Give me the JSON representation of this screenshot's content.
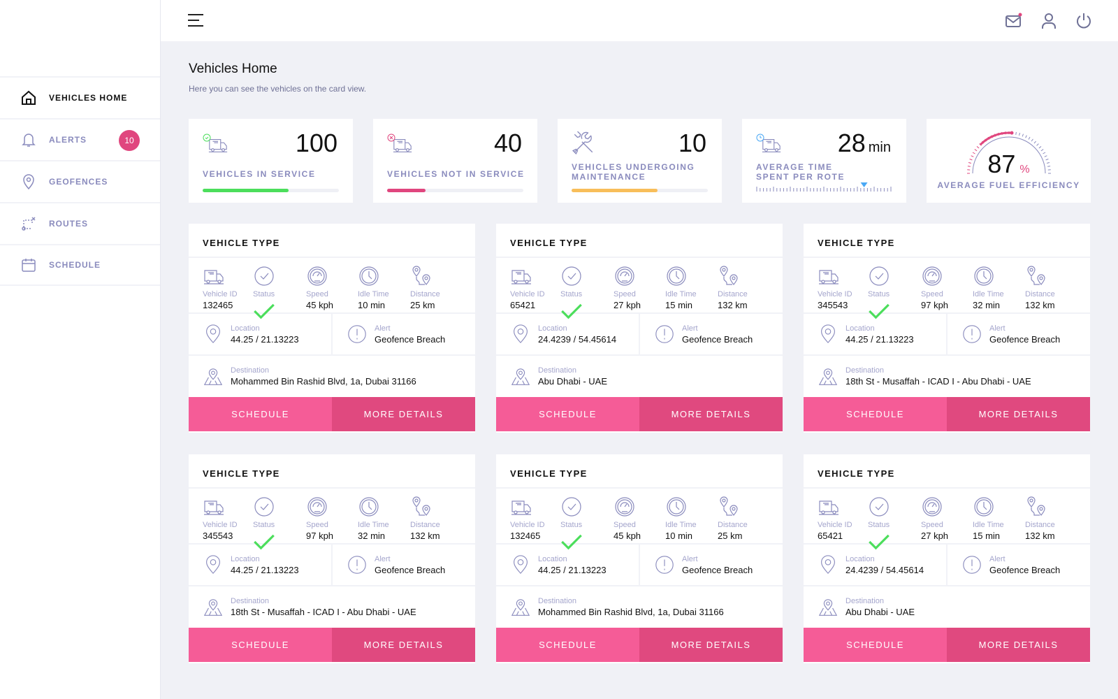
{
  "colors": {
    "accent": "#e0467e",
    "green": "#4cde5c",
    "orange": "#f8be5a",
    "blue": "#4aa8f5",
    "muted": "#8a8bbd"
  },
  "sidebar": {
    "items": [
      {
        "label": "VEHICLES HOME",
        "icon": "home-icon"
      },
      {
        "label": "ALERTS",
        "icon": "bell-icon",
        "badge": "10"
      },
      {
        "label": "GEOFENCES",
        "icon": "pin-icon"
      },
      {
        "label": "ROUTES",
        "icon": "routes-icon"
      },
      {
        "label": "SCHEDULE",
        "icon": "calendar-icon"
      }
    ]
  },
  "header": {
    "icons": [
      "menu-icon",
      "mail-icon",
      "user-icon",
      "power-icon"
    ]
  },
  "page": {
    "title": "Vehicles Home",
    "subtitle": "Here you can see the vehicles on the card view."
  },
  "stats": [
    {
      "value": "100",
      "label": "VEHICLES IN SERVICE",
      "progress": 0.63
    },
    {
      "value": "40",
      "label": "VEHICLES NOT IN SERVICE",
      "progress": 0.28
    },
    {
      "value": "10",
      "label": "VEHICLES UNDERGOING MAINTENANCE",
      "progress": 0.63
    },
    {
      "value": "28",
      "unit": "min",
      "label": "AVERAGE TIME SPENT PER ROTE",
      "slider": 0.8
    },
    {
      "value": "87",
      "unit": "%",
      "label": "AVERAGE FUEL EFFICIENCY",
      "gauge": 0.87
    }
  ],
  "card_labels": {
    "title": "VEHICLE TYPE",
    "vehicle_id": "Vehicle ID",
    "status": "Status",
    "speed": "Speed",
    "idle": "Idle Time",
    "distance": "Distance",
    "location": "Location",
    "alert": "Alert",
    "destination": "Destination",
    "schedule": "SCHEDULE",
    "more": "MORE DETAILS"
  },
  "vehicles": [
    {
      "id": "132465",
      "speed": "45 kph",
      "idle": "10 min",
      "distance": "25 km",
      "location": "44.25 / 21.13223",
      "alert": "Geofence Breach",
      "destination": "Mohammed Bin Rashid Blvd, 1a, Dubai 31166"
    },
    {
      "id": "65421",
      "speed": "27 kph",
      "idle": "15 min",
      "distance": "132 km",
      "location": "24.4239 / 54.45614",
      "alert": "Geofence Breach",
      "destination": "Abu Dhabi - UAE"
    },
    {
      "id": "345543",
      "speed": "97 kph",
      "idle": "32 min",
      "distance": "132 km",
      "location": "44.25 / 21.13223",
      "alert": "Geofence Breach",
      "destination": "18th St - Musaffah - ICAD I - Abu Dhabi - UAE"
    },
    {
      "id": "345543",
      "speed": "97 kph",
      "idle": "32 min",
      "distance": "132 km",
      "location": "44.25 / 21.13223",
      "alert": "Geofence Breach",
      "destination": "18th St - Musaffah - ICAD I - Abu Dhabi - UAE"
    },
    {
      "id": "132465",
      "speed": "45 kph",
      "idle": "10 min",
      "distance": "25 km",
      "location": "44.25 / 21.13223",
      "alert": "Geofence Breach",
      "destination": "Mohammed Bin Rashid Blvd, 1a, Dubai 31166"
    },
    {
      "id": "65421",
      "speed": "27 kph",
      "idle": "15 min",
      "distance": "132 km",
      "location": "24.4239 / 54.45614",
      "alert": "Geofence Breach",
      "destination": "Abu Dhabi - UAE"
    }
  ]
}
